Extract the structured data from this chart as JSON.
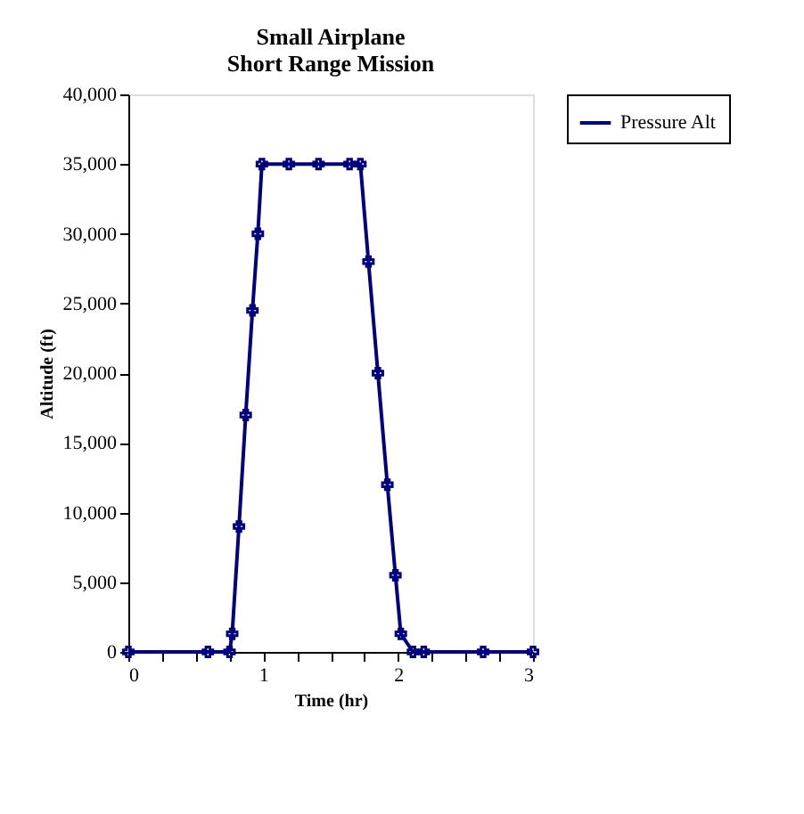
{
  "chart_data": {
    "type": "line",
    "title": "Small Airplane\nShort Range Mission",
    "xlabel": "Time (hr)",
    "ylabel": "Altitude (ft)",
    "series": [
      {
        "name": "Pressure Alt",
        "color": "#000080",
        "x": [
          0,
          0.59,
          0.75,
          0.77,
          0.82,
          0.87,
          0.92,
          0.96,
          0.99,
          1.19,
          1.41,
          1.64,
          1.72,
          1.78,
          1.85,
          1.92,
          1.98,
          2.02,
          2.11,
          2.19,
          2.63,
          3
        ],
        "values": [
          0,
          0,
          0,
          1300,
          9000,
          17000,
          24500,
          30000,
          35000,
          35000,
          35000,
          35000,
          35000,
          28000,
          20000,
          12000,
          5500,
          1300,
          0,
          0,
          0,
          0
        ]
      }
    ],
    "xlim": [
      0,
      3
    ],
    "xticks": [
      0,
      {
        "value": 0.25,
        "label": null
      },
      {
        "value": 0.5,
        "label": null
      },
      {
        "value": 0.75,
        "label": null
      },
      1,
      {
        "value": 1.25,
        "label": null
      },
      {
        "value": 1.5,
        "label": null
      },
      {
        "value": 1.75,
        "label": null
      },
      2,
      {
        "value": 2.25,
        "label": null
      },
      {
        "value": 2.5,
        "label": null
      },
      {
        "value": 2.75,
        "label": null
      },
      3
    ],
    "ylim": [
      0,
      40000
    ],
    "yticks": [
      {
        "value": 0,
        "label": "0"
      },
      {
        "value": 5000,
        "label": "5,000"
      },
      {
        "value": 10000,
        "label": "10,000"
      },
      {
        "value": 15000,
        "label": "15,000"
      },
      {
        "value": 20000,
        "label": "20,000"
      },
      {
        "value": 25000,
        "label": "25,000"
      },
      {
        "value": 30000,
        "label": "30,000"
      },
      {
        "value": 35000,
        "label": "35,000"
      },
      {
        "value": 40000,
        "label": "40,000"
      }
    ],
    "grid": false,
    "legend": "right",
    "marker": "cross",
    "line_style": "solid"
  }
}
